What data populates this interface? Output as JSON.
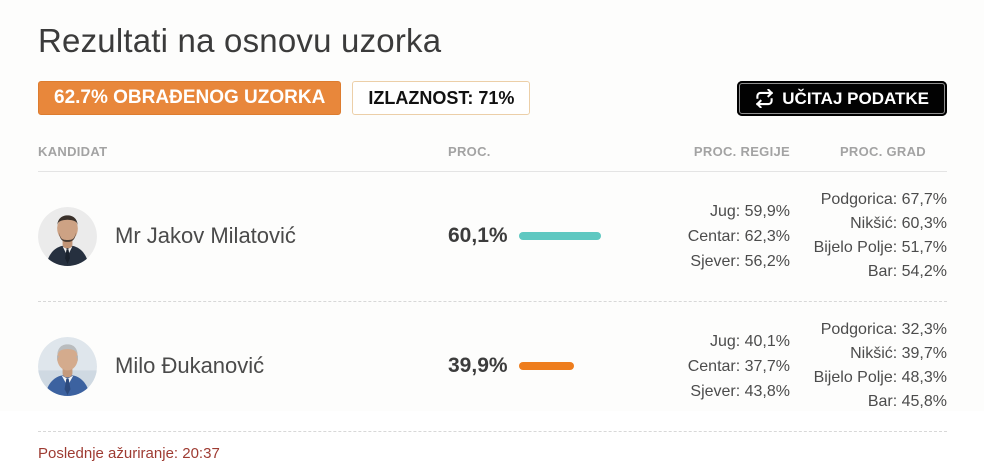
{
  "page": {
    "title": "Rezultati na osnovu uzorka",
    "last_update": "Poslednje ažuriranje: 20:37"
  },
  "badges": {
    "processed_sample": "62.7% OBRAĐENOG UZORKA",
    "turnout": "IZLAZNOST: 71%"
  },
  "toolbar": {
    "reload_label": "UČITAJ PODATKE"
  },
  "table": {
    "headers": {
      "candidate": "KANDIDAT",
      "percent": "PROC.",
      "regions": "PROC. REGIJE",
      "cities": "PROC. GRAD"
    },
    "rows": [
      {
        "name": "Mr Jakov Milatović",
        "percent_label": "60,1%",
        "percent_value": 60.1,
        "bar_color": "#5ec8c1",
        "regions": [
          "Jug: 59,9%",
          "Centar: 62,3%",
          "Sjever: 56,2%"
        ],
        "cities": [
          "Podgorica: 67,7%",
          "Nikšić: 60,3%",
          "Bijelo Polje: 51,7%",
          "Bar: 54,2%"
        ]
      },
      {
        "name": "Milo Đukanović",
        "percent_label": "39,9%",
        "percent_value": 39.9,
        "bar_color": "#ee7d1d",
        "regions": [
          "Jug: 40,1%",
          "Centar: 37,7%",
          "Sjever: 43,8%"
        ],
        "cities": [
          "Podgorica: 32,3%",
          "Nikšić: 39,7%",
          "Bijelo Polje: 48,3%",
          "Bar: 45,8%"
        ]
      }
    ]
  },
  "colors": {
    "accent_orange": "#e8873b",
    "bar_teal": "#5ec8c1",
    "bar_orange": "#ee7d1d",
    "footer_red": "#9e3b32",
    "button_black": "#020202"
  }
}
